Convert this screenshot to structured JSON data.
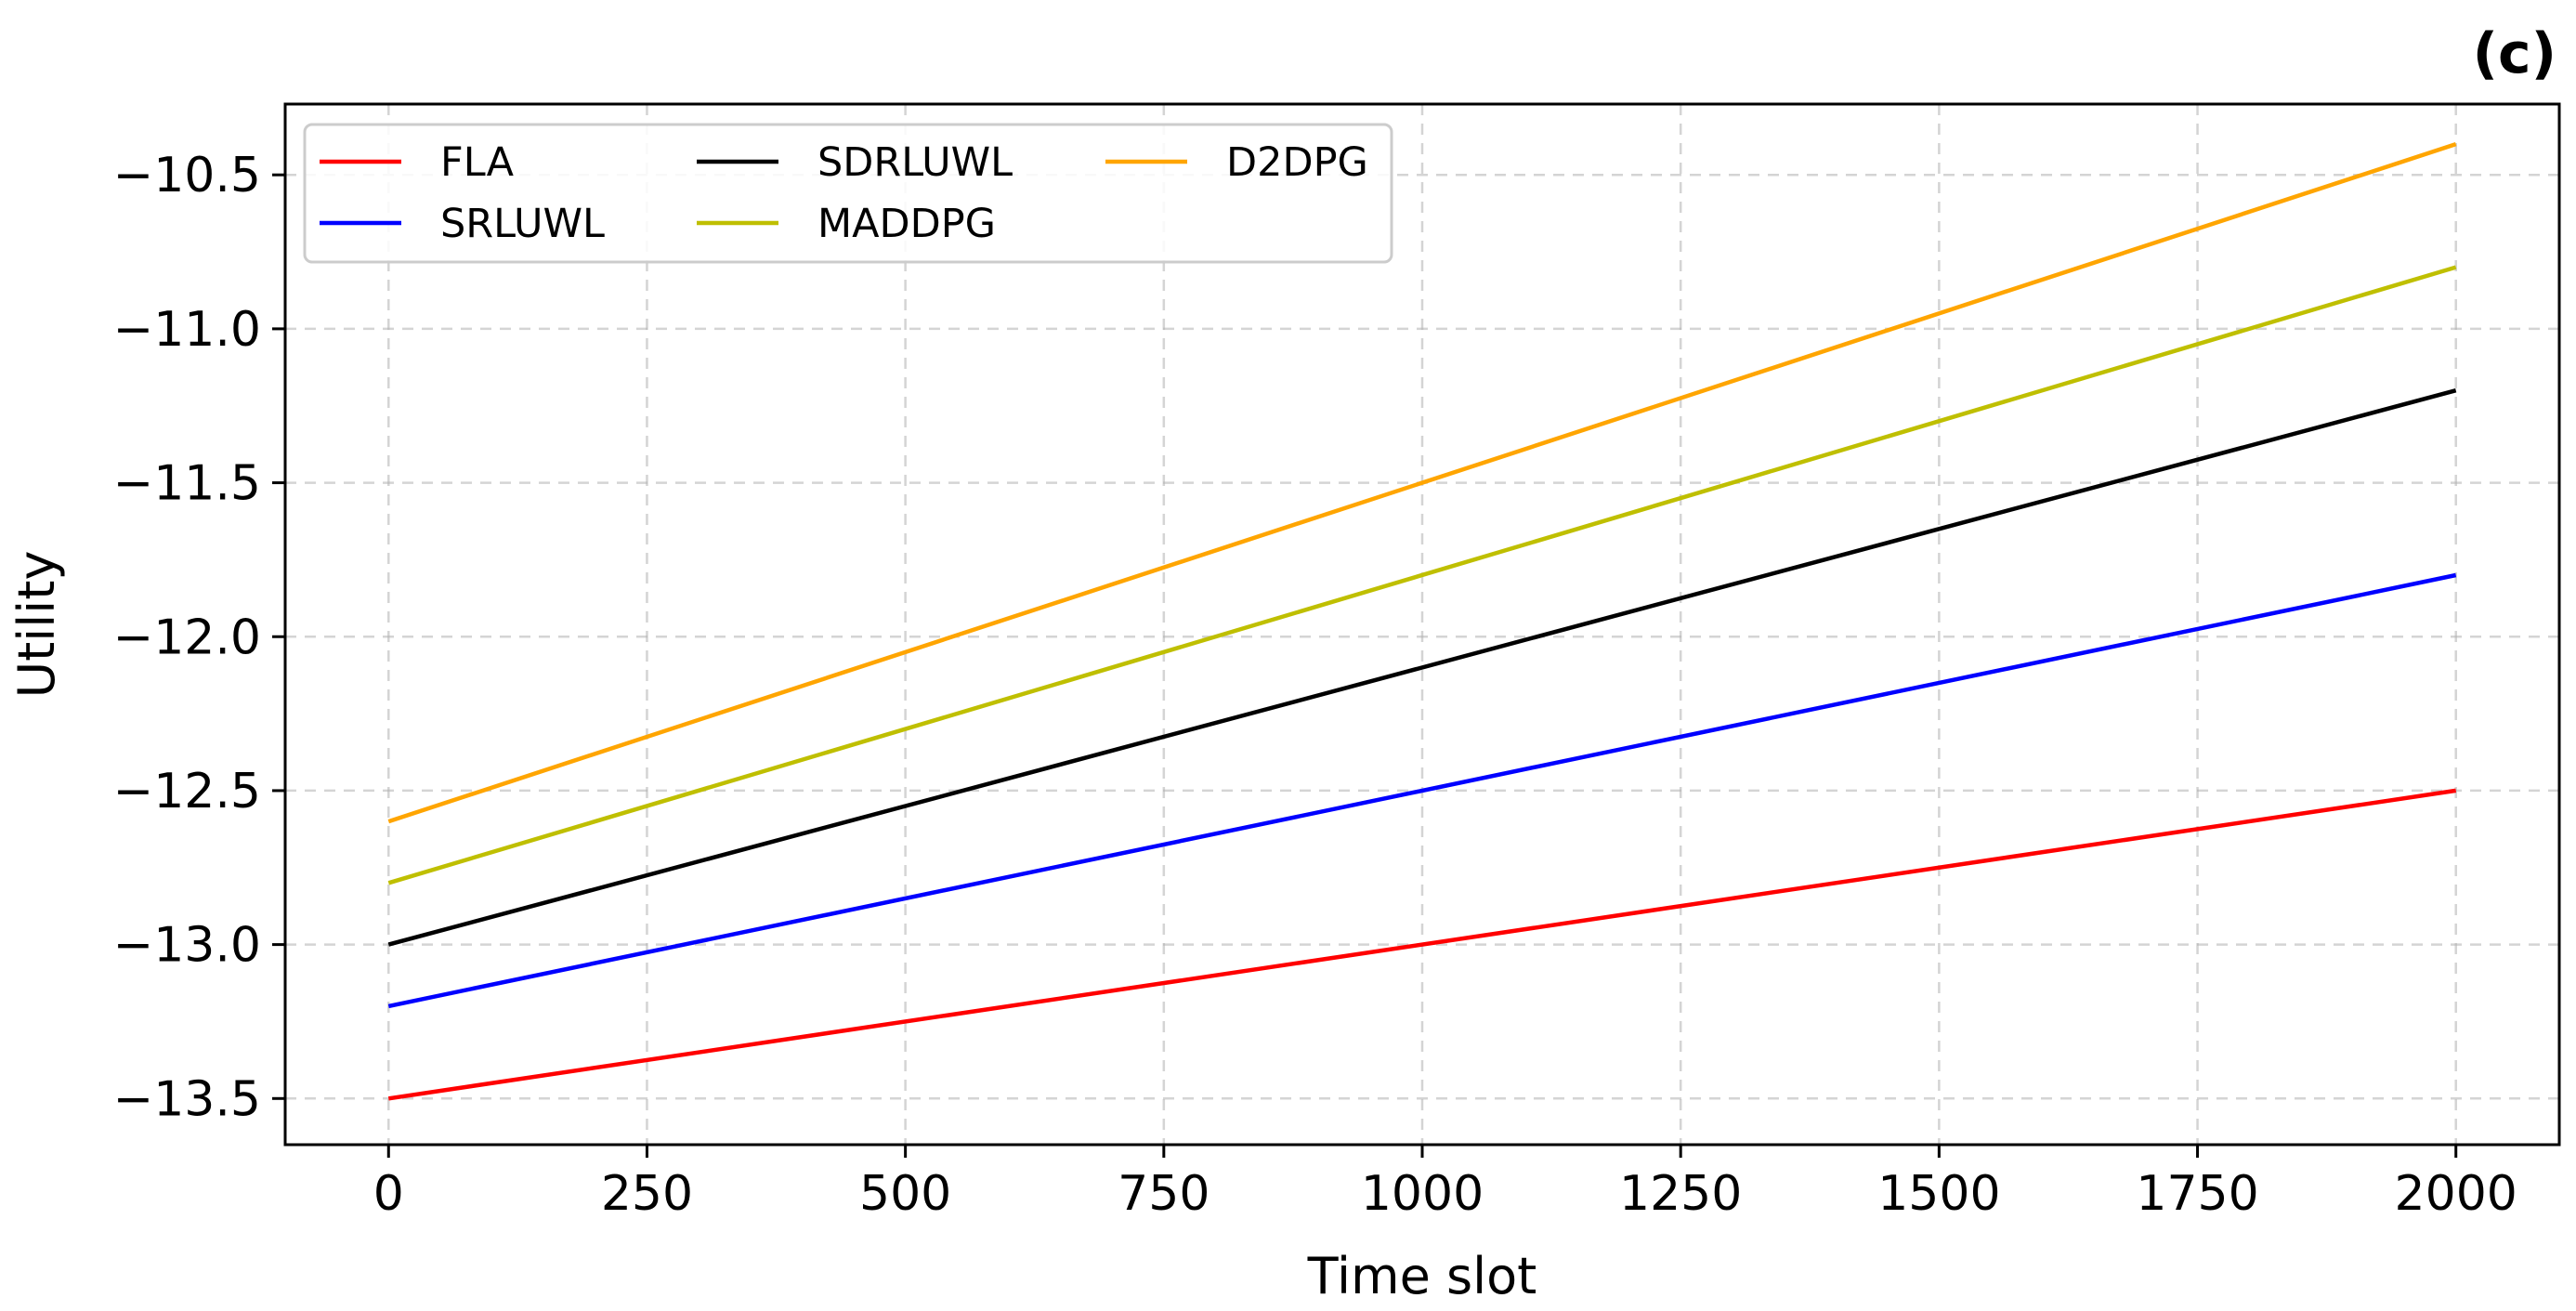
{
  "chart_data": {
    "type": "line",
    "panel_label": "(c)",
    "title": "",
    "xlabel": "Time slot",
    "ylabel": "Utility",
    "xlim": [
      -100,
      2100
    ],
    "ylim": [
      -13.65,
      -10.27
    ],
    "x_ticks": [
      0,
      250,
      500,
      750,
      1000,
      1250,
      1500,
      1750,
      2000
    ],
    "x_tick_labels": [
      "0",
      "250",
      "500",
      "750",
      "1000",
      "1250",
      "1500",
      "1750",
      "2000"
    ],
    "y_ticks": [
      -10.5,
      -11.0,
      -11.5,
      -12.0,
      -12.5,
      -13.0,
      -13.5
    ],
    "y_tick_labels": [
      "−10.5",
      "−11.0",
      "−11.5",
      "−12.0",
      "−12.5",
      "−13.0",
      "−13.5"
    ],
    "grid": true,
    "grid_style": "dashed",
    "legend": {
      "position": "top-left",
      "columns": 3
    },
    "series": [
      {
        "name": "FLA",
        "color": "#ff0000",
        "x": [
          0,
          2000
        ],
        "y": [
          -13.5,
          -12.5
        ]
      },
      {
        "name": "SRLUWL",
        "color": "#0000ff",
        "x": [
          0,
          2000
        ],
        "y": [
          -13.2,
          -11.8
        ]
      },
      {
        "name": "SDRLUWL",
        "color": "#000000",
        "x": [
          0,
          2000
        ],
        "y": [
          -13.0,
          -11.2
        ]
      },
      {
        "name": "MADDPG",
        "color": "#bfbf00",
        "x": [
          0,
          2000
        ],
        "y": [
          -12.8,
          -10.8
        ]
      },
      {
        "name": "D2DPG",
        "color": "#ffa500",
        "x": [
          0,
          2000
        ],
        "y": [
          -12.6,
          -10.4
        ]
      }
    ]
  }
}
